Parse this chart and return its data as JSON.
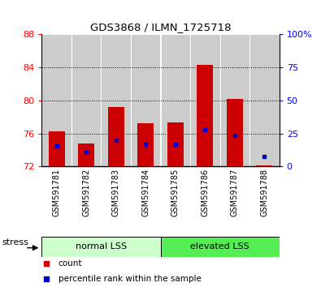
{
  "title": "GDS3868 / ILMN_1725718",
  "samples": [
    "GSM591781",
    "GSM591782",
    "GSM591783",
    "GSM591784",
    "GSM591785",
    "GSM591786",
    "GSM591787",
    "GSM591788"
  ],
  "red_tops": [
    76.3,
    74.8,
    79.2,
    77.2,
    77.3,
    84.3,
    80.2,
    72.1
  ],
  "blue_vals": [
    74.5,
    73.8,
    75.2,
    74.7,
    74.7,
    76.5,
    75.8,
    73.2
  ],
  "base": 72.0,
  "ylim": [
    72,
    88
  ],
  "yticks_left": [
    72,
    76,
    80,
    84,
    88
  ],
  "yticks_right": [
    0,
    25,
    50,
    75,
    100
  ],
  "group1_label": "normal LSS",
  "group2_label": "elevated LSS",
  "group1_count": 4,
  "group2_count": 4,
  "stress_label": "stress",
  "legend_red": "count",
  "legend_blue": "percentile rank within the sample",
  "bar_color": "#cc0000",
  "blue_color": "#0000cc",
  "group1_bg": "#ccffcc",
  "group2_bg": "#55ee55",
  "col_bg": "#cccccc",
  "bar_width": 0.55,
  "grid_color": "black",
  "grid_ticks": [
    76,
    80,
    84
  ]
}
